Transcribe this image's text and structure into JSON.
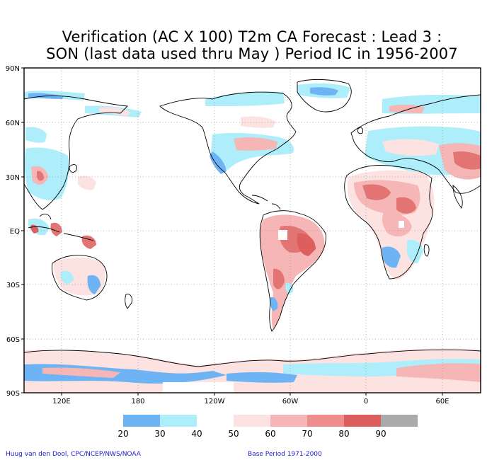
{
  "title": {
    "line1": "Verification (AC X 100) T2m CA Forecast : Lead 3 :",
    "line2": "SON (last data used thru May ) Period IC in 1956-2007"
  },
  "map": {
    "lat_labels": [
      "90N",
      "60N",
      "30N",
      "EQ",
      "30S",
      "60S",
      "90S"
    ],
    "lon_labels": [
      "120E",
      "180",
      "120W",
      "60W",
      "0",
      "60E"
    ]
  },
  "colorbar": {
    "labels": [
      "20",
      "30",
      "40",
      "50",
      "60",
      "70",
      "80",
      "90"
    ],
    "colors": [
      "#6eb4f5",
      "#aeeefb",
      "#ffffff",
      "#fde2e2",
      "#f6b6b6",
      "#f08e8e",
      "#e37474",
      "#dd5e5e",
      "#aaaaaa"
    ]
  },
  "footer": {
    "left": "Huug van den Dool, CPC/NCEP/NWS/NOAA",
    "right": "Base Period 1971-2000"
  }
}
